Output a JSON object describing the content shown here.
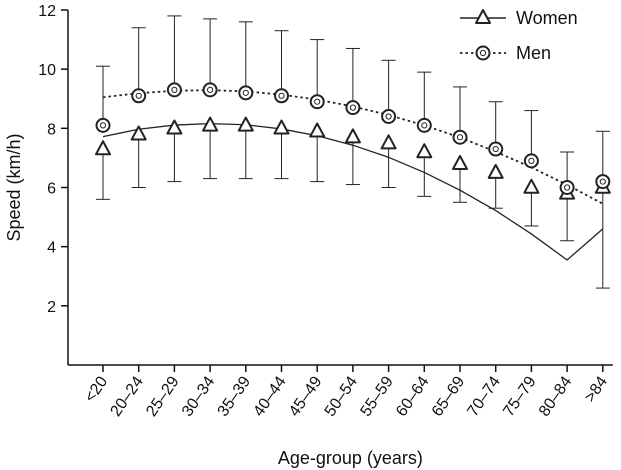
{
  "chart_data": {
    "type": "line",
    "xlabel": "Age-group (years)",
    "ylabel": "Speed (km/h)",
    "ylim": [
      0,
      12
    ],
    "yticks": [
      "2",
      "4",
      "6",
      "8",
      "10",
      "12"
    ],
    "categories": [
      "<20",
      "20–24",
      "25–29",
      "30–34",
      "35–39",
      "40–44",
      "45–49",
      "50–54",
      "55–59",
      "60–64",
      "65–69",
      "70–74",
      "75–79",
      "80–84",
      ">84"
    ],
    "legend_position": "top-right",
    "series": [
      {
        "name": "Women",
        "marker": "triangle",
        "line_style": "solid",
        "color": "#222222",
        "values": [
          7.3,
          7.8,
          8.0,
          8.1,
          8.1,
          8.0,
          7.9,
          7.7,
          7.5,
          7.2,
          6.8,
          6.5,
          6.0,
          5.8,
          6.0
        ],
        "error_low": [
          5.6,
          6.0,
          6.2,
          6.3,
          6.3,
          6.3,
          6.2,
          6.1,
          6.0,
          5.7,
          5.5,
          5.3,
          4.7,
          4.2,
          2.6
        ],
        "error_high": [
          null,
          null,
          null,
          null,
          null,
          null,
          null,
          null,
          null,
          null,
          null,
          null,
          null,
          null,
          null
        ],
        "fit": [
          7.72,
          7.97,
          8.11,
          8.16,
          8.12,
          7.98,
          7.75,
          7.43,
          7.02,
          6.51,
          5.91,
          5.22,
          4.43,
          3.55,
          4.6
        ]
      },
      {
        "name": "Men",
        "marker": "circle",
        "line_style": "dotted",
        "color": "#222222",
        "values": [
          8.1,
          9.1,
          9.3,
          9.3,
          9.2,
          9.1,
          8.9,
          8.7,
          8.4,
          8.1,
          7.7,
          7.3,
          6.9,
          6.0,
          6.2
        ],
        "error_low": [
          null,
          null,
          null,
          null,
          null,
          null,
          null,
          null,
          null,
          null,
          null,
          null,
          null,
          null,
          null
        ],
        "error_high": [
          10.1,
          11.4,
          11.8,
          11.7,
          11.6,
          11.3,
          11.0,
          10.7,
          10.3,
          9.9,
          9.4,
          8.9,
          8.6,
          7.2,
          7.9
        ],
        "fit": [
          9.05,
          9.19,
          9.27,
          9.29,
          9.25,
          9.14,
          8.97,
          8.74,
          8.45,
          8.1,
          7.69,
          7.21,
          6.68,
          6.09,
          5.45
        ]
      }
    ]
  }
}
